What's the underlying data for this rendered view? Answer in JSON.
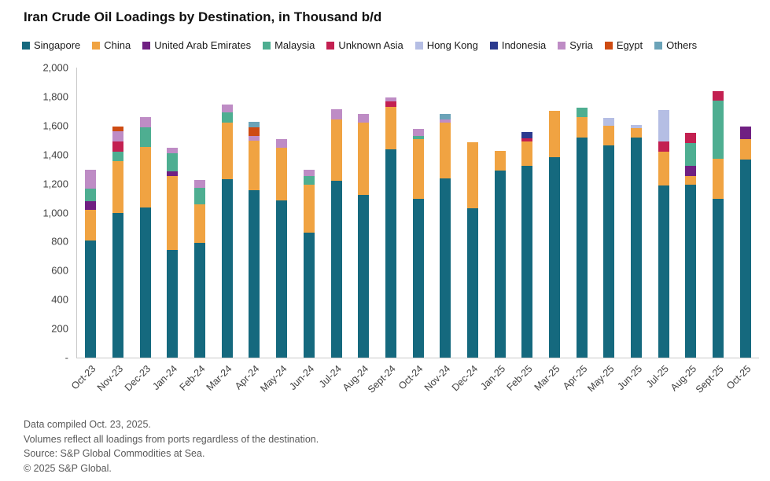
{
  "title": "Iran Crude Oil Loadings by Destination, in Thousand b/d",
  "footer": {
    "lines": [
      "Data compiled Oct. 23, 2025.",
      "Volumes reflect all loadings from ports regardless of the destination.",
      "Source: S&P Global Commodities at Sea.",
      "© 2025 S&P Global."
    ]
  },
  "chart_data": {
    "type": "bar",
    "stacked": true,
    "title": "Iran Crude Oil Loadings by Destination, in Thousand b/d",
    "ylabel": "Thousand b/d",
    "xlabel": "",
    "ylim": [
      0,
      2000
    ],
    "ytick_step": 200,
    "grid": false,
    "legend_position": "top",
    "yticks": [
      {
        "value": 2000,
        "label": "2,000"
      },
      {
        "value": 1800,
        "label": "1,800"
      },
      {
        "value": 1600,
        "label": "1,600"
      },
      {
        "value": 1400,
        "label": "1,400"
      },
      {
        "value": 1200,
        "label": "1,200"
      },
      {
        "value": 1000,
        "label": "1,000"
      },
      {
        "value": 800,
        "label": "800"
      },
      {
        "value": 600,
        "label": "600"
      },
      {
        "value": 400,
        "label": "400"
      },
      {
        "value": 200,
        "label": "200"
      },
      {
        "value": 0,
        "label": "-"
      }
    ],
    "legend": [
      {
        "label": "Singapore",
        "color": "#15697E"
      },
      {
        "label": "China",
        "color": "#F0A342"
      },
      {
        "label": "United Arab Emirates",
        "color": "#702082"
      },
      {
        "label": "Malaysia",
        "color": "#4EAE91"
      },
      {
        "label": "Unknown Asia",
        "color": "#C32051"
      },
      {
        "label": "Hong Kong",
        "color": "#B5BEE4"
      },
      {
        "label": "Indonesia",
        "color": "#2B3A8F"
      },
      {
        "label": "Syria",
        "color": "#BE8CC5"
      },
      {
        "label": "Egypt",
        "color": "#CE4B12"
      },
      {
        "label": "Others",
        "color": "#6BA3B8"
      }
    ],
    "categories": [
      "Oct-23",
      "Nov-23",
      "Dec-23",
      "Jan-24",
      "Feb-24",
      "Mar-24",
      "Apr-24",
      "May-24",
      "Jun-24",
      "Jul-24",
      "Aug-24",
      "Sept-24",
      "Oct-24",
      "Nov-24",
      "Dec-24",
      "Jan-25",
      "Feb-25",
      "Mar-25",
      "Apr-25",
      "May-25",
      "Jun-25",
      "Jul-25",
      "Aug-25",
      "Sept-25",
      "Oct-25"
    ],
    "bars": [
      {
        "month": "Oct-23",
        "total": 1295,
        "segments": [
          {
            "series": "Singapore",
            "value": 810
          },
          {
            "series": "China",
            "value": 210
          },
          {
            "series": "United Arab Emirates",
            "value": 60
          },
          {
            "series": "Malaysia",
            "value": 85
          },
          {
            "series": "Syria",
            "value": 130
          }
        ]
      },
      {
        "month": "Nov-23",
        "total": 1595,
        "segments": [
          {
            "series": "Singapore",
            "value": 1000
          },
          {
            "series": "China",
            "value": 355
          },
          {
            "series": "Malaysia",
            "value": 65
          },
          {
            "series": "Unknown Asia",
            "value": 70
          },
          {
            "series": "Syria",
            "value": 70
          },
          {
            "series": "Egypt",
            "value": 35
          }
        ]
      },
      {
        "month": "Dec-23",
        "total": 1660,
        "segments": [
          {
            "series": "Singapore",
            "value": 1035
          },
          {
            "series": "China",
            "value": 415
          },
          {
            "series": "Malaysia",
            "value": 140
          },
          {
            "series": "Syria",
            "value": 70
          }
        ]
      },
      {
        "month": "Jan-24",
        "total": 1450,
        "segments": [
          {
            "series": "Singapore",
            "value": 740
          },
          {
            "series": "China",
            "value": 510
          },
          {
            "series": "United Arab Emirates",
            "value": 35
          },
          {
            "series": "Malaysia",
            "value": 125
          },
          {
            "series": "Syria",
            "value": 40
          }
        ]
      },
      {
        "month": "Feb-24",
        "total": 1225,
        "segments": [
          {
            "series": "Singapore",
            "value": 790
          },
          {
            "series": "China",
            "value": 265
          },
          {
            "series": "Malaysia",
            "value": 115
          },
          {
            "series": "Syria",
            "value": 55
          }
        ]
      },
      {
        "month": "Mar-24",
        "total": 1745,
        "segments": [
          {
            "series": "Singapore",
            "value": 1230
          },
          {
            "series": "China",
            "value": 390
          },
          {
            "series": "Malaysia",
            "value": 70
          },
          {
            "series": "Syria",
            "value": 55
          }
        ]
      },
      {
        "month": "Apr-24",
        "total": 1625,
        "segments": [
          {
            "series": "Singapore",
            "value": 1155
          },
          {
            "series": "China",
            "value": 340
          },
          {
            "series": "Syria",
            "value": 35
          },
          {
            "series": "Egypt",
            "value": 60
          },
          {
            "series": "Others",
            "value": 35
          }
        ]
      },
      {
        "month": "May-24",
        "total": 1505,
        "segments": [
          {
            "series": "Singapore",
            "value": 1085
          },
          {
            "series": "China",
            "value": 365
          },
          {
            "series": "Syria",
            "value": 55
          }
        ]
      },
      {
        "month": "Jun-24",
        "total": 1295,
        "segments": [
          {
            "series": "Singapore",
            "value": 860
          },
          {
            "series": "China",
            "value": 335
          },
          {
            "series": "Malaysia",
            "value": 55
          },
          {
            "series": "Syria",
            "value": 45
          }
        ]
      },
      {
        "month": "Jul-24",
        "total": 1715,
        "segments": [
          {
            "series": "Singapore",
            "value": 1220
          },
          {
            "series": "China",
            "value": 425
          },
          {
            "series": "Syria",
            "value": 70
          }
        ]
      },
      {
        "month": "Aug-24",
        "total": 1680,
        "segments": [
          {
            "series": "Singapore",
            "value": 1120
          },
          {
            "series": "China",
            "value": 500
          },
          {
            "series": "Syria",
            "value": 60
          }
        ]
      },
      {
        "month": "Sept-24",
        "total": 1795,
        "segments": [
          {
            "series": "Singapore",
            "value": 1435
          },
          {
            "series": "China",
            "value": 295
          },
          {
            "series": "Unknown Asia",
            "value": 35
          },
          {
            "series": "Syria",
            "value": 30
          }
        ]
      },
      {
        "month": "Oct-24",
        "total": 1575,
        "segments": [
          {
            "series": "Singapore",
            "value": 1095
          },
          {
            "series": "China",
            "value": 410
          },
          {
            "series": "Malaysia",
            "value": 25
          },
          {
            "series": "Syria",
            "value": 45
          }
        ]
      },
      {
        "month": "Nov-24",
        "total": 1680,
        "segments": [
          {
            "series": "Singapore",
            "value": 1235
          },
          {
            "series": "China",
            "value": 385
          },
          {
            "series": "Syria",
            "value": 25
          },
          {
            "series": "Others",
            "value": 35
          }
        ]
      },
      {
        "month": "Dec-24",
        "total": 1485,
        "segments": [
          {
            "series": "Singapore",
            "value": 1030
          },
          {
            "series": "China",
            "value": 455
          }
        ]
      },
      {
        "month": "Jan-25",
        "total": 1425,
        "segments": [
          {
            "series": "Singapore",
            "value": 1290
          },
          {
            "series": "China",
            "value": 135
          }
        ]
      },
      {
        "month": "Feb-25",
        "total": 1555,
        "segments": [
          {
            "series": "Singapore",
            "value": 1325
          },
          {
            "series": "China",
            "value": 165
          },
          {
            "series": "Unknown Asia",
            "value": 20
          },
          {
            "series": "Indonesia",
            "value": 45
          }
        ]
      },
      {
        "month": "Mar-25",
        "total": 1700,
        "segments": [
          {
            "series": "Singapore",
            "value": 1380
          },
          {
            "series": "China",
            "value": 320
          }
        ]
      },
      {
        "month": "Apr-25",
        "total": 1725,
        "segments": [
          {
            "series": "Singapore",
            "value": 1520
          },
          {
            "series": "China",
            "value": 140
          },
          {
            "series": "Malaysia",
            "value": 65
          }
        ]
      },
      {
        "month": "May-25",
        "total": 1655,
        "segments": [
          {
            "series": "Singapore",
            "value": 1465
          },
          {
            "series": "China",
            "value": 135
          },
          {
            "series": "Hong Kong",
            "value": 55
          }
        ]
      },
      {
        "month": "Jun-25",
        "total": 1605,
        "segments": [
          {
            "series": "Singapore",
            "value": 1515
          },
          {
            "series": "China",
            "value": 70
          },
          {
            "series": "Hong Kong",
            "value": 20
          }
        ]
      },
      {
        "month": "Jul-25",
        "total": 1705,
        "segments": [
          {
            "series": "Singapore",
            "value": 1185
          },
          {
            "series": "China",
            "value": 235
          },
          {
            "series": "Unknown Asia",
            "value": 70
          },
          {
            "series": "Hong Kong",
            "value": 215
          }
        ]
      },
      {
        "month": "Aug-25",
        "total": 1550,
        "segments": [
          {
            "series": "Singapore",
            "value": 1195
          },
          {
            "series": "China",
            "value": 55
          },
          {
            "series": "United Arab Emirates",
            "value": 70
          },
          {
            "series": "Malaysia",
            "value": 160
          },
          {
            "series": "Unknown Asia",
            "value": 70
          }
        ]
      },
      {
        "month": "Sept-25",
        "total": 1840,
        "segments": [
          {
            "series": "Singapore",
            "value": 1095
          },
          {
            "series": "China",
            "value": 275
          },
          {
            "series": "Malaysia",
            "value": 400
          },
          {
            "series": "Unknown Asia",
            "value": 70
          }
        ]
      },
      {
        "month": "Oct-25",
        "total": 1595,
        "segments": [
          {
            "series": "Singapore",
            "value": 1365
          },
          {
            "series": "China",
            "value": 140
          },
          {
            "series": "United Arab Emirates",
            "value": 90
          }
        ]
      }
    ]
  }
}
